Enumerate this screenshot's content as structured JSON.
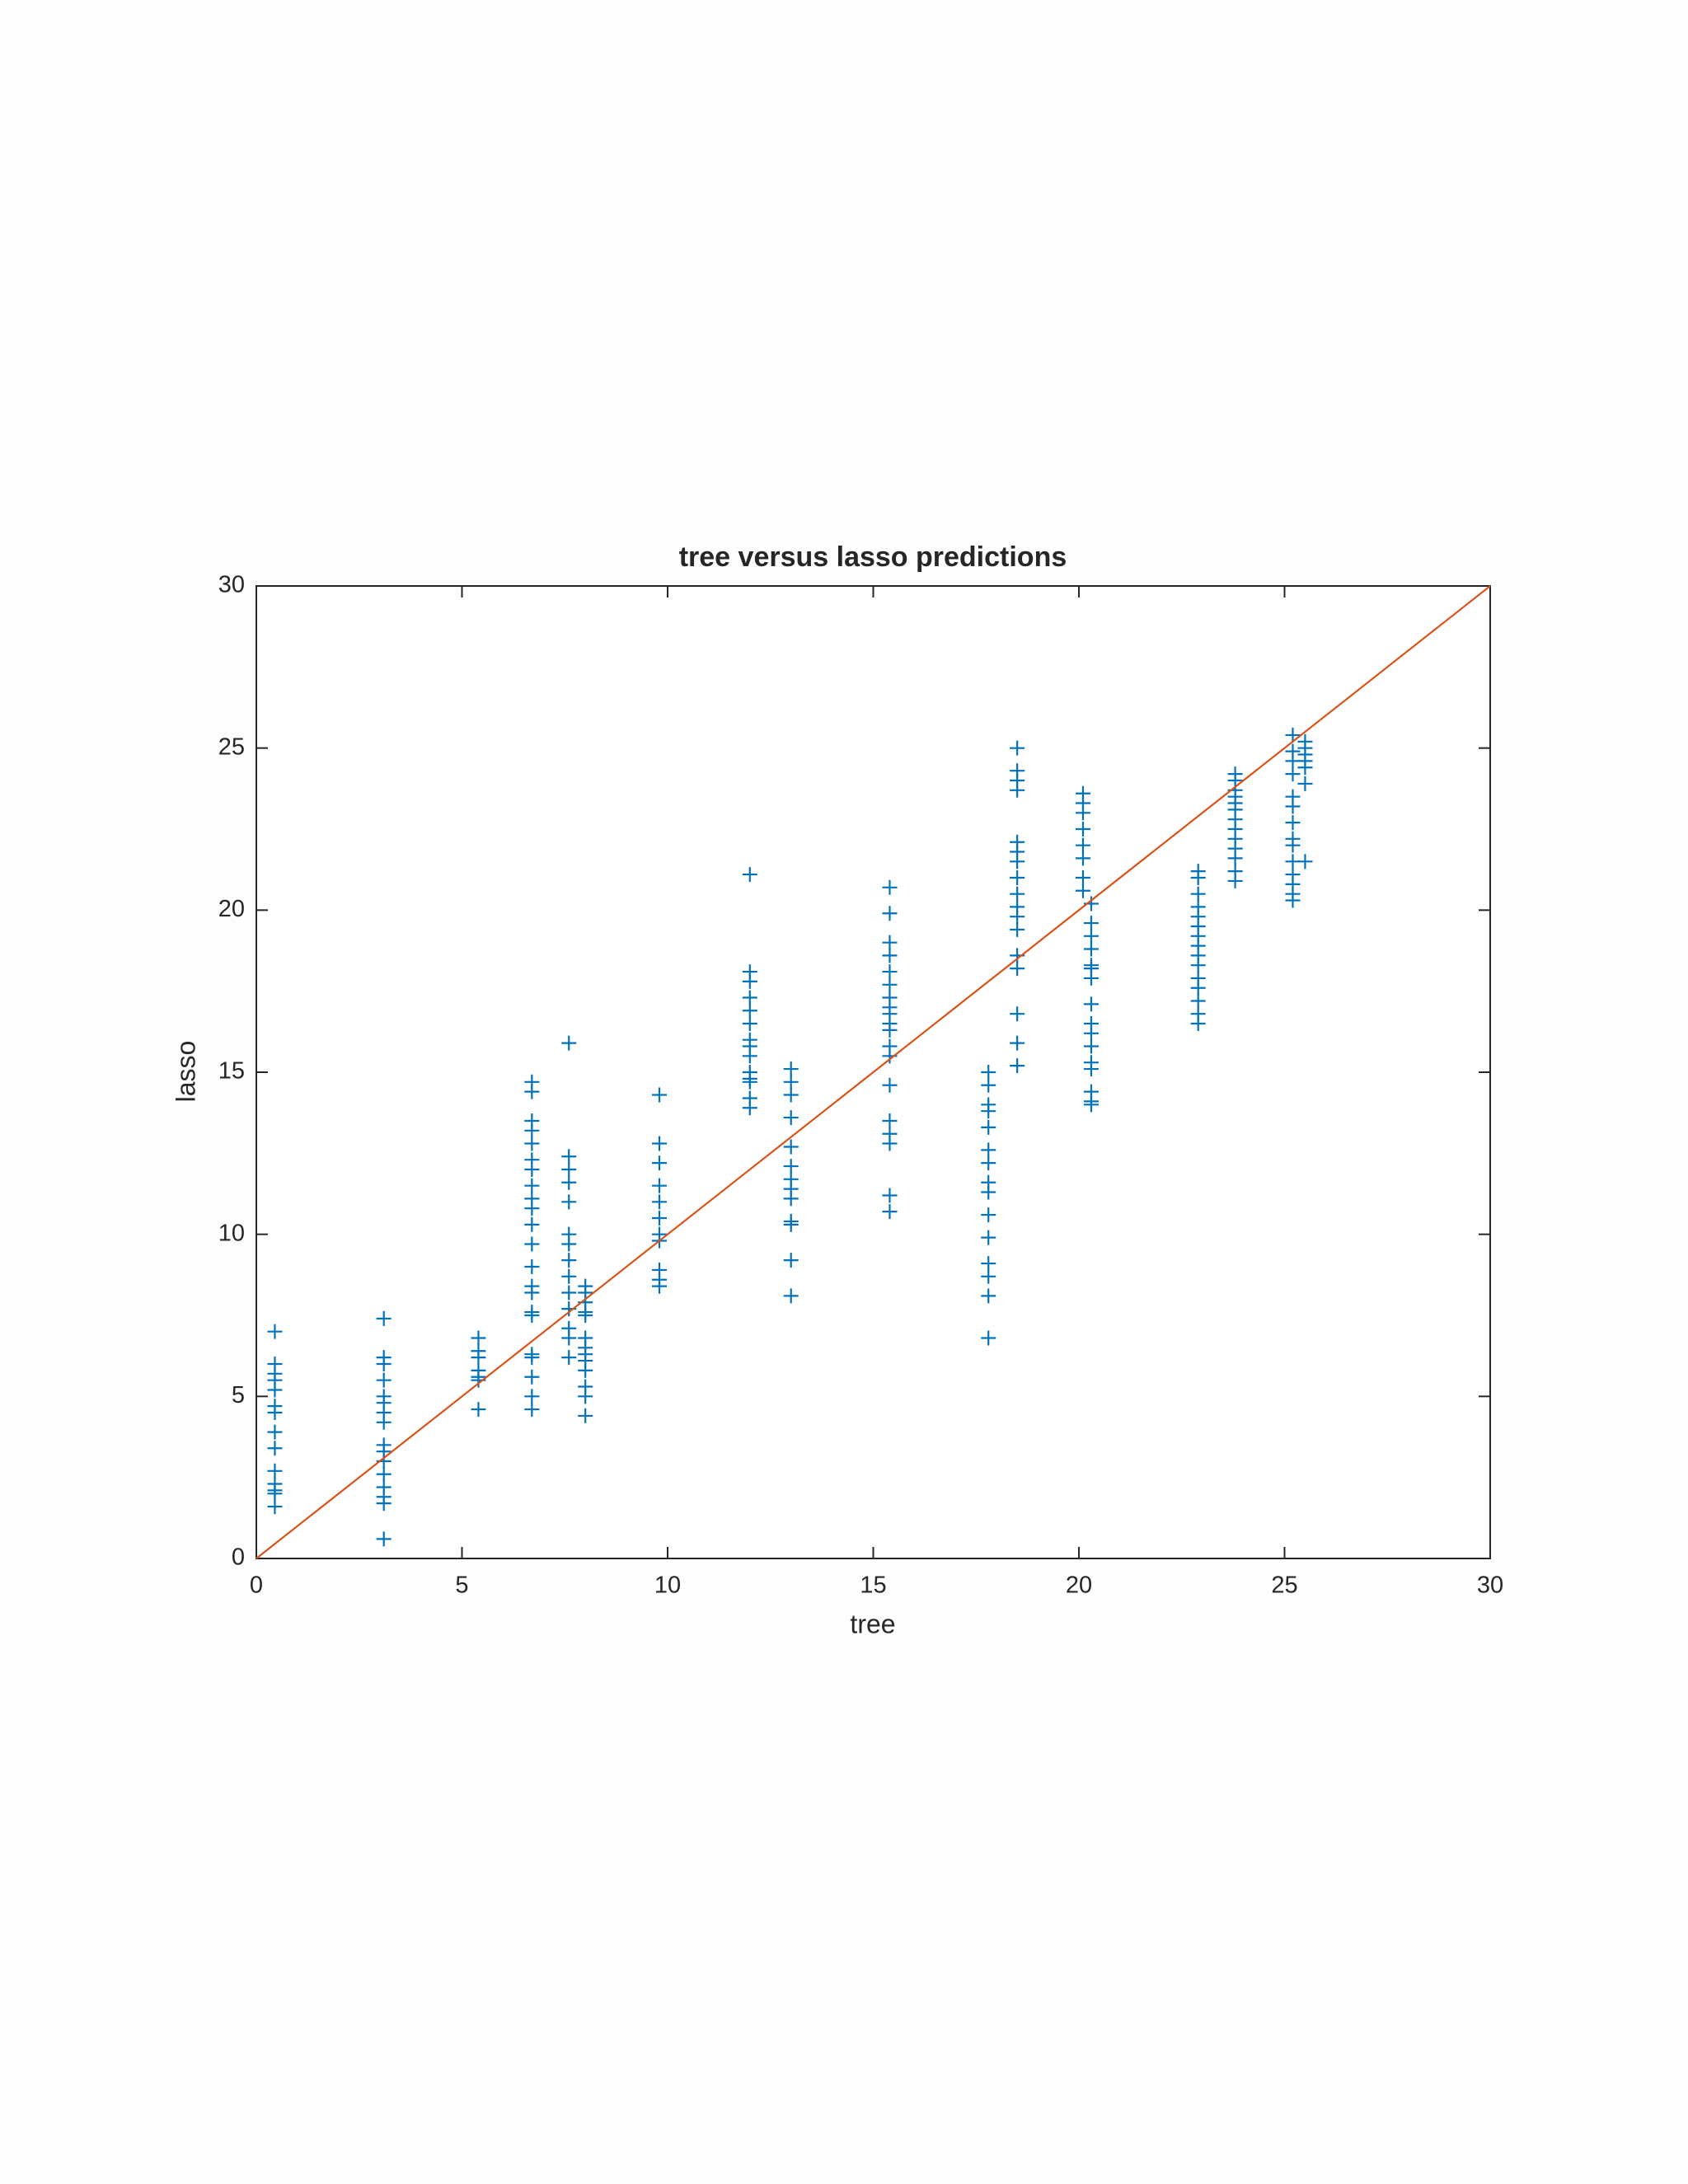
{
  "chart_data": {
    "type": "scatter",
    "title": "tree versus lasso predictions",
    "x_label": "tree",
    "y_label": "lasso",
    "xlim": [
      0,
      30
    ],
    "ylim": [
      0,
      30
    ],
    "xticks": [
      0,
      5,
      10,
      15,
      20,
      25,
      30
    ],
    "yticks": [
      0,
      5,
      10,
      15,
      20,
      25,
      30
    ],
    "grid": false,
    "box": true,
    "series": [
      {
        "type": "scatter",
        "marker": "+",
        "color": "#0072bd",
        "x": [
          0.45,
          0.45,
          0.45,
          0.45,
          0.45,
          0.45,
          0.45,
          0.45,
          0.45,
          0.45,
          0.45,
          0.45,
          0.45,
          0.45,
          3.1,
          3.1,
          3.1,
          3.1,
          3.1,
          3.1,
          3.1,
          3.1,
          3.1,
          3.1,
          3.1,
          3.1,
          3.1,
          3.1,
          3.1,
          3.1,
          5.4,
          5.4,
          5.4,
          5.4,
          5.4,
          5.4,
          5.4,
          6.7,
          6.7,
          6.7,
          6.7,
          6.7,
          6.7,
          6.7,
          6.7,
          6.7,
          6.7,
          6.7,
          6.7,
          6.7,
          6.7,
          6.7,
          6.7,
          6.7,
          6.7,
          6.7,
          6.7,
          6.7,
          6.7,
          7.6,
          7.6,
          7.6,
          7.6,
          7.6,
          7.6,
          7.6,
          7.6,
          7.6,
          7.6,
          7.6,
          7.6,
          7.6,
          7.6,
          8.0,
          8.0,
          8.0,
          8.0,
          8.0,
          8.0,
          8.0,
          8.0,
          8.0,
          8.0,
          8.0,
          8.0,
          8.0,
          9.8,
          9.8,
          9.8,
          9.8,
          9.8,
          9.8,
          9.8,
          9.8,
          9.8,
          9.8,
          9.8,
          12.0,
          12.0,
          12.0,
          12.0,
          12.0,
          12.0,
          12.0,
          12.0,
          12.0,
          12.0,
          12.0,
          12.0,
          12.0,
          12.0,
          13.0,
          13.0,
          13.0,
          13.0,
          13.0,
          13.0,
          13.0,
          13.0,
          13.0,
          13.0,
          13.0,
          13.0,
          13.0,
          15.4,
          15.4,
          15.4,
          15.4,
          15.4,
          15.4,
          15.4,
          15.4,
          15.4,
          15.4,
          15.4,
          15.4,
          15.4,
          15.4,
          15.4,
          15.4,
          15.4,
          15.4,
          15.4,
          17.8,
          17.8,
          17.8,
          17.8,
          17.8,
          17.8,
          17.8,
          17.8,
          17.8,
          17.8,
          17.8,
          17.8,
          17.8,
          17.8,
          17.8,
          18.5,
          18.5,
          18.5,
          18.5,
          18.5,
          18.5,
          18.5,
          18.5,
          18.5,
          18.5,
          18.5,
          18.5,
          18.5,
          18.5,
          18.5,
          18.5,
          18.5,
          20.1,
          20.1,
          20.1,
          20.1,
          20.1,
          20.1,
          20.1,
          20.1,
          20.3,
          20.3,
          20.3,
          20.3,
          20.3,
          20.3,
          20.3,
          20.3,
          20.3,
          20.3,
          20.3,
          20.3,
          20.3,
          20.3,
          20.3,
          20.3,
          22.9,
          22.9,
          22.9,
          22.9,
          22.9,
          22.9,
          22.9,
          22.9,
          22.9,
          22.9,
          22.9,
          22.9,
          22.9,
          22.9,
          22.9,
          23.8,
          23.8,
          23.8,
          23.8,
          23.8,
          23.8,
          23.8,
          23.8,
          23.8,
          23.8,
          23.8,
          23.8,
          23.8,
          25.2,
          25.2,
          25.2,
          25.2,
          25.2,
          25.2,
          25.2,
          25.2,
          25.2,
          25.2,
          25.2,
          25.2,
          25.2,
          25.2,
          25.5,
          25.5,
          25.5,
          25.5,
          25.5,
          25.5,
          25.5
        ],
        "values": [
          7.0,
          6.0,
          5.7,
          5.5,
          5.2,
          4.7,
          4.5,
          3.9,
          3.4,
          2.7,
          2.3,
          2.1,
          2.0,
          1.6,
          7.4,
          6.2,
          6.0,
          5.5,
          5.0,
          4.8,
          4.5,
          4.2,
          3.5,
          3.3,
          3.0,
          2.6,
          2.2,
          1.9,
          1.7,
          0.6,
          6.8,
          6.4,
          6.2,
          5.8,
          5.6,
          5.5,
          4.6,
          14.7,
          14.4,
          13.5,
          13.2,
          12.8,
          12.3,
          12.0,
          11.5,
          11.1,
          10.8,
          10.3,
          9.7,
          9.0,
          8.4,
          8.2,
          7.6,
          7.5,
          6.3,
          6.2,
          5.6,
          5.0,
          4.6,
          15.9,
          12.4,
          12.0,
          11.6,
          11.0,
          10.0,
          9.7,
          9.2,
          8.7,
          8.2,
          7.7,
          7.1,
          6.8,
          6.2,
          8.4,
          8.2,
          7.9,
          7.6,
          7.5,
          6.8,
          6.5,
          6.3,
          6.1,
          5.8,
          5.3,
          5.0,
          4.4,
          14.3,
          12.8,
          12.2,
          11.5,
          11.0,
          10.5,
          10.0,
          9.8,
          8.9,
          8.6,
          8.4,
          21.1,
          18.1,
          17.8,
          17.3,
          16.9,
          16.5,
          16.0,
          15.8,
          15.5,
          15.0,
          14.8,
          14.7,
          14.2,
          13.9,
          15.1,
          14.7,
          14.3,
          13.6,
          12.7,
          12.1,
          11.7,
          11.4,
          11.1,
          10.4,
          10.3,
          9.2,
          8.1,
          20.7,
          19.9,
          19.0,
          18.6,
          18.1,
          17.7,
          17.3,
          17.0,
          16.8,
          16.5,
          16.3,
          15.8,
          15.5,
          14.6,
          13.5,
          13.1,
          12.8,
          11.2,
          10.7,
          15.0,
          14.6,
          14.0,
          13.8,
          13.3,
          12.6,
          12.2,
          11.6,
          11.3,
          10.6,
          9.9,
          9.1,
          8.7,
          8.1,
          6.8,
          25.0,
          24.3,
          24.0,
          23.7,
          22.1,
          21.8,
          21.5,
          21.0,
          20.5,
          20.1,
          19.8,
          19.4,
          18.6,
          18.2,
          16.8,
          15.9,
          15.2,
          23.6,
          23.3,
          23.0,
          22.5,
          22.0,
          21.6,
          21.0,
          20.6,
          20.2,
          19.6,
          19.2,
          18.8,
          18.3,
          18.2,
          17.9,
          17.1,
          16.5,
          16.2,
          15.8,
          15.3,
          15.1,
          14.4,
          14.1,
          14.0,
          21.2,
          21.0,
          20.5,
          20.1,
          19.8,
          19.5,
          19.2,
          18.9,
          18.6,
          18.3,
          17.9,
          17.6,
          17.2,
          16.8,
          16.5,
          24.2,
          24.0,
          23.7,
          23.5,
          23.3,
          23.1,
          22.8,
          22.5,
          22.2,
          21.9,
          21.6,
          21.2,
          20.9,
          25.4,
          24.9,
          24.6,
          24.2,
          23.5,
          23.2,
          22.7,
          22.2,
          22.0,
          21.5,
          21.1,
          20.8,
          20.5,
          20.3,
          25.2,
          25.0,
          24.8,
          24.6,
          24.4,
          23.9,
          21.5
        ]
      },
      {
        "type": "line",
        "color": "#d95319",
        "x": [
          0,
          30
        ],
        "values": [
          0,
          30
        ]
      }
    ]
  }
}
